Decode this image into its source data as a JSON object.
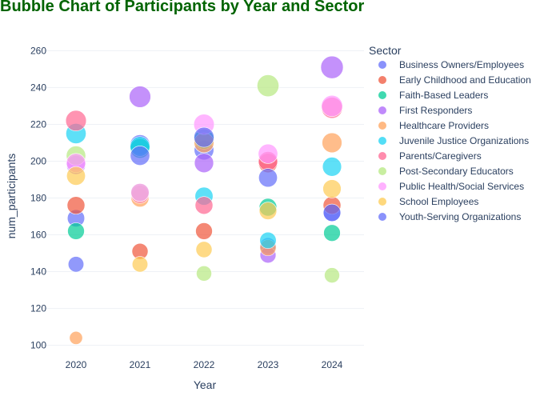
{
  "chart_data": {
    "type": "scatter",
    "title": "Bubble Chart of Participants by Year and Sector",
    "xlabel": "Year",
    "ylabel": "num_participants",
    "legend_title": "Sector",
    "legend_position": "right",
    "x": [
      "2020",
      "2021",
      "2022",
      "2023",
      "2024"
    ],
    "y_ticks": [
      100,
      120,
      140,
      160,
      180,
      200,
      220,
      240,
      260
    ],
    "ylim": [
      92,
      268
    ],
    "grid": false,
    "marker_size": "proportional to num_participants",
    "series": [
      {
        "name": "Business Owners/Employees",
        "color": "#636EFA",
        "values": [
          169,
          209,
          206,
          154,
          172
        ]
      },
      {
        "name": "Early Childhood and Education",
        "color": "#EF553B",
        "values": [
          176,
          151,
          162,
          199,
          176
        ]
      },
      {
        "name": "Faith-Based Leaders",
        "color": "#00CC96",
        "values": [
          162,
          207,
          212,
          175,
          161
        ]
      },
      {
        "name": "First Responders",
        "color": "#AB63FA",
        "values": [
          198,
          235,
          199,
          149,
          251
        ]
      },
      {
        "name": "Healthcare Providers",
        "color": "#FFA15A",
        "values": [
          104,
          180,
          210,
          153,
          210
        ]
      },
      {
        "name": "Juvenile Justice Organizations",
        "color": "#19D3F3",
        "values": [
          215,
          208,
          181,
          157,
          197
        ]
      },
      {
        "name": "Parents/Caregivers",
        "color": "#FF6692",
        "values": [
          222,
          182,
          176,
          200,
          229
        ]
      },
      {
        "name": "Post-Secondary Educators",
        "color": "#B6E880",
        "values": [
          203,
          183,
          139,
          241,
          138
        ]
      },
      {
        "name": "Public Health/Social Services",
        "color": "#FF97FF",
        "values": [
          199,
          183,
          220,
          204,
          230
        ]
      },
      {
        "name": "School Employees",
        "color": "#FECB52",
        "values": [
          192,
          144,
          152,
          173,
          185
        ]
      },
      {
        "name": "Youth-Serving Organizations",
        "color": "#636EFA",
        "values": [
          144,
          203,
          213,
          191,
          172
        ]
      }
    ]
  }
}
